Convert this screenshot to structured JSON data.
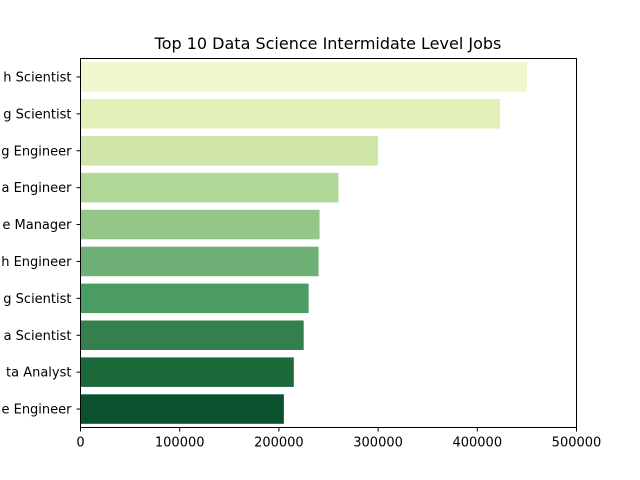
{
  "chart_data": {
    "type": "bar",
    "orientation": "horizontal",
    "title": "Top 10 Data Science Intermidate Level Jobs",
    "xlabel": "",
    "ylabel": "",
    "xlim": [
      0,
      500000
    ],
    "x_ticks": [
      0,
      100000,
      200000,
      300000,
      400000,
      500000
    ],
    "x_tick_labels": [
      "0",
      "100000",
      "200000",
      "300000",
      "400000",
      "500000"
    ],
    "grid": false,
    "legend": "none",
    "categories": [
      "h Scientist",
      "g Scientist",
      "g Engineer",
      "a Engineer",
      "e Manager",
      "h Engineer",
      "g Scientist",
      "a Scientist",
      "ta Analyst",
      "e Engineer"
    ],
    "values": [
      450000,
      423000,
      300000,
      260000,
      241000,
      240000,
      230000,
      225000,
      215000,
      205000
    ],
    "colors": [
      "#f2f6cc",
      "#e3efb8",
      "#d0e5a8",
      "#b0d796",
      "#93c687",
      "#6fb077",
      "#4b9c62",
      "#337f4e",
      "#1c6a3c",
      "#0b5130"
    ]
  }
}
